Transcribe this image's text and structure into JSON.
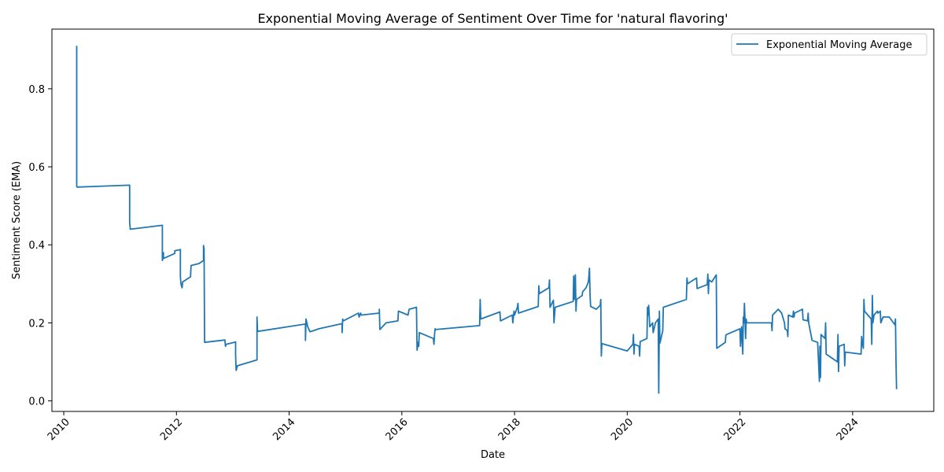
{
  "chart_data": {
    "type": "line",
    "title": "Exponential Moving Average of Sentiment Over Time for 'natural flavoring'",
    "xlabel": "Date",
    "ylabel": "Sentiment Score (EMA)",
    "x_ticks": [
      "2010",
      "2012",
      "2014",
      "2016",
      "2018",
      "2020",
      "2022",
      "2024"
    ],
    "y_ticks": [
      "0.0",
      "0.2",
      "0.4",
      "0.6",
      "0.8"
    ],
    "xlim": [
      2009.79,
      2025.44
    ],
    "ylim": [
      -0.027,
      0.953
    ],
    "legend": "top-right",
    "grid": false,
    "color": "#1f77b4",
    "series": [
      {
        "name": "Exponential Moving Average",
        "points": [
          [
            2010.23,
            0.91
          ],
          [
            2010.23,
            0.55
          ],
          [
            2010.24,
            0.548
          ],
          [
            2011.17,
            0.553
          ],
          [
            2011.17,
            0.465
          ],
          [
            2011.17,
            0.458
          ],
          [
            2011.18,
            0.44
          ],
          [
            2011.75,
            0.45
          ],
          [
            2011.75,
            0.41
          ],
          [
            2011.75,
            0.36
          ],
          [
            2011.77,
            0.38
          ],
          [
            2011.77,
            0.365
          ],
          [
            2011.97,
            0.378
          ],
          [
            2011.97,
            0.385
          ],
          [
            2012.07,
            0.388
          ],
          [
            2012.07,
            0.32
          ],
          [
            2012.08,
            0.3
          ],
          [
            2012.09,
            0.295
          ],
          [
            2012.1,
            0.29
          ],
          [
            2012.11,
            0.305
          ],
          [
            2012.25,
            0.318
          ],
          [
            2012.26,
            0.347
          ],
          [
            2012.4,
            0.352
          ],
          [
            2012.48,
            0.36
          ],
          [
            2012.48,
            0.398
          ],
          [
            2012.49,
            0.39
          ],
          [
            2012.5,
            0.15
          ],
          [
            2012.86,
            0.156
          ],
          [
            2012.87,
            0.14
          ],
          [
            2012.88,
            0.145
          ],
          [
            2013.05,
            0.151
          ],
          [
            2013.05,
            0.118
          ],
          [
            2013.06,
            0.078
          ],
          [
            2013.08,
            0.09
          ],
          [
            2013.43,
            0.105
          ],
          [
            2013.43,
            0.215
          ],
          [
            2013.44,
            0.178
          ],
          [
            2014.29,
            0.197
          ],
          [
            2014.29,
            0.155
          ],
          [
            2014.3,
            0.21
          ],
          [
            2014.33,
            0.19
          ],
          [
            2014.37,
            0.177
          ],
          [
            2014.53,
            0.185
          ],
          [
            2014.94,
            0.198
          ],
          [
            2014.94,
            0.175
          ],
          [
            2014.95,
            0.21
          ],
          [
            2014.96,
            0.205
          ],
          [
            2015.23,
            0.225
          ],
          [
            2015.24,
            0.215
          ],
          [
            2015.27,
            0.225
          ],
          [
            2015.28,
            0.22
          ],
          [
            2015.6,
            0.225
          ],
          [
            2015.6,
            0.235
          ],
          [
            2015.61,
            0.183
          ],
          [
            2015.72,
            0.2
          ],
          [
            2015.93,
            0.205
          ],
          [
            2015.94,
            0.23
          ],
          [
            2016.11,
            0.22
          ],
          [
            2016.13,
            0.235
          ],
          [
            2016.26,
            0.24
          ],
          [
            2016.27,
            0.13
          ],
          [
            2016.29,
            0.15
          ],
          [
            2016.3,
            0.14
          ],
          [
            2016.31,
            0.175
          ],
          [
            2016.56,
            0.16
          ],
          [
            2016.57,
            0.145
          ],
          [
            2016.58,
            0.17
          ],
          [
            2016.59,
            0.185
          ],
          [
            2016.6,
            0.183
          ],
          [
            2017.38,
            0.193
          ],
          [
            2017.39,
            0.26
          ],
          [
            2017.4,
            0.21
          ],
          [
            2017.74,
            0.228
          ],
          [
            2017.75,
            0.205
          ],
          [
            2017.96,
            0.22
          ],
          [
            2017.97,
            0.2
          ],
          [
            2017.99,
            0.23
          ],
          [
            2018.0,
            0.22
          ],
          [
            2018.05,
            0.24
          ],
          [
            2018.06,
            0.25
          ],
          [
            2018.07,
            0.225
          ],
          [
            2018.42,
            0.242
          ],
          [
            2018.43,
            0.295
          ],
          [
            2018.44,
            0.275
          ],
          [
            2018.61,
            0.29
          ],
          [
            2018.62,
            0.31
          ],
          [
            2018.63,
            0.24
          ],
          [
            2018.69,
            0.258
          ],
          [
            2018.7,
            0.2
          ],
          [
            2018.72,
            0.24
          ],
          [
            2019.04,
            0.255
          ],
          [
            2019.05,
            0.32
          ],
          [
            2019.06,
            0.26
          ],
          [
            2019.08,
            0.323
          ],
          [
            2019.09,
            0.23
          ],
          [
            2019.1,
            0.26
          ],
          [
            2019.2,
            0.27
          ],
          [
            2019.21,
            0.28
          ],
          [
            2019.27,
            0.29
          ],
          [
            2019.31,
            0.305
          ],
          [
            2019.32,
            0.32
          ],
          [
            2019.33,
            0.34
          ],
          [
            2019.34,
            0.27
          ],
          [
            2019.35,
            0.242
          ],
          [
            2019.45,
            0.235
          ],
          [
            2019.52,
            0.245
          ],
          [
            2019.53,
            0.26
          ],
          [
            2019.54,
            0.115
          ],
          [
            2019.55,
            0.147
          ],
          [
            2020.0,
            0.128
          ],
          [
            2020.1,
            0.145
          ],
          [
            2020.11,
            0.17
          ],
          [
            2020.12,
            0.12
          ],
          [
            2020.13,
            0.145
          ],
          [
            2020.21,
            0.14
          ],
          [
            2020.22,
            0.115
          ],
          [
            2020.23,
            0.152
          ],
          [
            2020.35,
            0.16
          ],
          [
            2020.36,
            0.24
          ],
          [
            2020.37,
            0.22
          ],
          [
            2020.38,
            0.245
          ],
          [
            2020.4,
            0.19
          ],
          [
            2020.45,
            0.2
          ],
          [
            2020.46,
            0.175
          ],
          [
            2020.5,
            0.2
          ],
          [
            2020.55,
            0.21
          ],
          [
            2020.56,
            0.02
          ],
          [
            2020.57,
            0.23
          ],
          [
            2020.58,
            0.148
          ],
          [
            2020.63,
            0.18
          ],
          [
            2020.64,
            0.24
          ],
          [
            2021.05,
            0.26
          ],
          [
            2021.06,
            0.315
          ],
          [
            2021.07,
            0.3
          ],
          [
            2021.23,
            0.315
          ],
          [
            2021.24,
            0.288
          ],
          [
            2021.42,
            0.298
          ],
          [
            2021.43,
            0.325
          ],
          [
            2021.44,
            0.275
          ],
          [
            2021.45,
            0.31
          ],
          [
            2021.5,
            0.305
          ],
          [
            2021.58,
            0.323
          ],
          [
            2021.59,
            0.135
          ],
          [
            2021.74,
            0.15
          ],
          [
            2021.75,
            0.168
          ],
          [
            2021.76,
            0.17
          ],
          [
            2022.0,
            0.185
          ],
          [
            2022.01,
            0.14
          ],
          [
            2022.03,
            0.19
          ],
          [
            2022.05,
            0.12
          ],
          [
            2022.06,
            0.215
          ],
          [
            2022.07,
            0.2
          ],
          [
            2022.08,
            0.25
          ],
          [
            2022.09,
            0.21
          ],
          [
            2022.1,
            0.16
          ],
          [
            2022.11,
            0.21
          ],
          [
            2022.12,
            0.2
          ],
          [
            2022.56,
            0.2
          ],
          [
            2022.57,
            0.18
          ],
          [
            2022.58,
            0.22
          ],
          [
            2022.68,
            0.235
          ],
          [
            2022.74,
            0.225
          ],
          [
            2022.79,
            0.2
          ],
          [
            2022.8,
            0.185
          ],
          [
            2022.84,
            0.18
          ],
          [
            2022.85,
            0.165
          ],
          [
            2022.86,
            0.22
          ],
          [
            2022.94,
            0.215
          ],
          [
            2022.95,
            0.23
          ],
          [
            2022.96,
            0.215
          ],
          [
            2022.97,
            0.225
          ],
          [
            2023.11,
            0.235
          ],
          [
            2023.12,
            0.208
          ],
          [
            2023.2,
            0.205
          ],
          [
            2023.21,
            0.225
          ],
          [
            2023.22,
            0.2
          ],
          [
            2023.28,
            0.155
          ],
          [
            2023.38,
            0.15
          ],
          [
            2023.41,
            0.05
          ],
          [
            2023.42,
            0.14
          ],
          [
            2023.43,
            0.06
          ],
          [
            2023.44,
            0.17
          ],
          [
            2023.51,
            0.16
          ],
          [
            2023.52,
            0.2
          ],
          [
            2023.53,
            0.12
          ],
          [
            2023.73,
            0.1
          ],
          [
            2023.74,
            0.17
          ],
          [
            2023.75,
            0.075
          ],
          [
            2023.76,
            0.14
          ],
          [
            2023.85,
            0.145
          ],
          [
            2023.86,
            0.09
          ],
          [
            2023.87,
            0.125
          ],
          [
            2024.15,
            0.12
          ],
          [
            2024.16,
            0.165
          ],
          [
            2024.17,
            0.15
          ],
          [
            2024.19,
            0.135
          ],
          [
            2024.2,
            0.26
          ],
          [
            2024.21,
            0.23
          ],
          [
            2024.33,
            0.21
          ],
          [
            2024.34,
            0.145
          ],
          [
            2024.35,
            0.27
          ],
          [
            2024.36,
            0.2
          ],
          [
            2024.38,
            0.22
          ],
          [
            2024.44,
            0.23
          ],
          [
            2024.45,
            0.225
          ],
          [
            2024.49,
            0.23
          ],
          [
            2024.5,
            0.2
          ],
          [
            2024.54,
            0.215
          ],
          [
            2024.65,
            0.215
          ],
          [
            2024.75,
            0.195
          ],
          [
            2024.76,
            0.21
          ],
          [
            2024.77,
            0.1
          ],
          [
            2024.78,
            0.03
          ]
        ]
      }
    ]
  }
}
